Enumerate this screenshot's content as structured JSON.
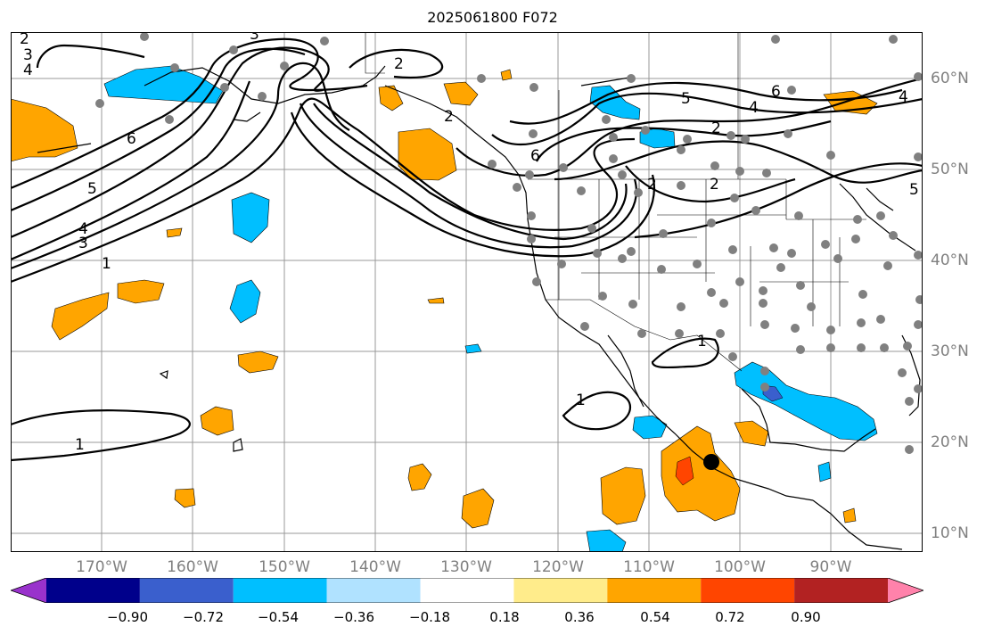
{
  "title": "2025061800 F072",
  "lon_labels": [
    "170°W",
    "160°W",
    "150°W",
    "140°W",
    "130°W",
    "120°W",
    "110°W",
    "100°W",
    "90°W"
  ],
  "lat_labels": [
    "60°N",
    "50°N",
    "40°N",
    "30°N",
    "20°N",
    "10°N"
  ],
  "contour_labels": [
    "2",
    "3",
    "4",
    "6",
    "5",
    "4",
    "3",
    "1",
    "2",
    "3",
    "6",
    "5",
    "6",
    "4",
    "2",
    "4",
    "5",
    "2",
    "1",
    "1",
    "1",
    "2",
    "2"
  ],
  "colorbar": {
    "ticks": [
      "−0.90",
      "−0.72",
      "−0.54",
      "−0.36",
      "−0.18",
      "0.18",
      "0.36",
      "0.54",
      "0.72",
      "0.90"
    ],
    "colors": [
      "#9932cc",
      "#00008b",
      "#3a5fcd",
      "#00bfff",
      "#b0e2ff",
      "#ffffff",
      "#ffec8b",
      "#ffa500",
      "#ff4500",
      "#b22222",
      "#ff82ab"
    ]
  },
  "colors": {
    "orange": "#ffa500",
    "red_orange": "#ff4500",
    "deep_sky_blue": "#00bfff",
    "royal_blue": "#3a5fcd",
    "station_dot": "#808080",
    "grid": "#999999",
    "contour": "#000000"
  },
  "marker": "black-dot"
}
